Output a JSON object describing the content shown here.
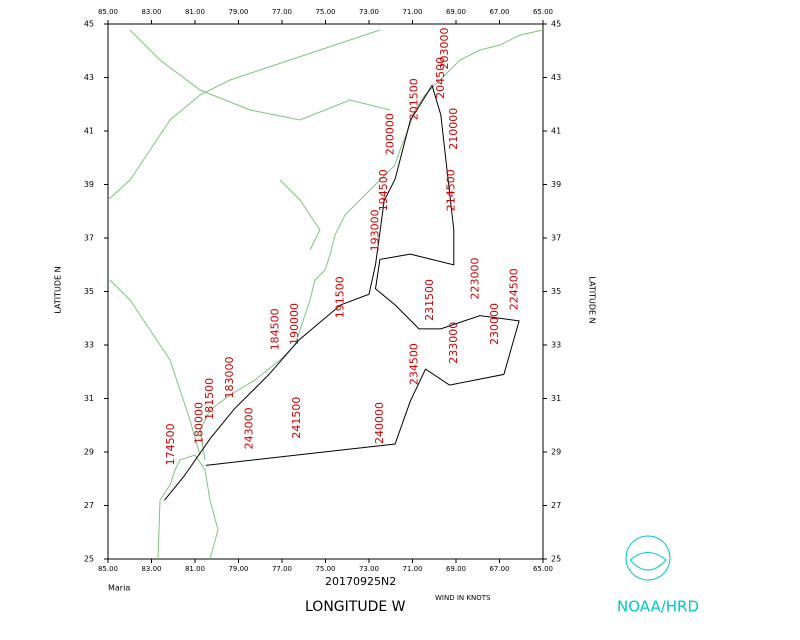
{
  "chart_data": {
    "type": "track",
    "storm": "Maria",
    "flight": "20170925N2",
    "xlabel": "LONGITUDE  W",
    "ylabel": "LATITUDE  N",
    "note": "WIND IN KNOTS",
    "credit": "NOAA/HRD",
    "xlim": [
      85,
      65
    ],
    "ylim": [
      25,
      45
    ],
    "xticks": [
      {
        "value": 85,
        "label": "85.00"
      },
      {
        "value": 83,
        "label": "83.00"
      },
      {
        "value": 81,
        "label": "81.00"
      },
      {
        "value": 79,
        "label": "79.00"
      },
      {
        "value": 77,
        "label": "77.00"
      },
      {
        "value": 75,
        "label": "75.00"
      },
      {
        "value": 73,
        "label": "73.00"
      },
      {
        "value": 71,
        "label": "71.00"
      },
      {
        "value": 69,
        "label": "69.00"
      },
      {
        "value": 67,
        "label": "67.00"
      },
      {
        "value": 65,
        "label": "65.00"
      }
    ],
    "yticks": [
      25,
      27,
      29,
      31,
      33,
      35,
      37,
      39,
      41,
      43,
      45
    ],
    "track_color": "#000000",
    "label_color": "#cc0000",
    "track": {
      "lon": [
        82.4,
        81.5,
        80.3,
        79.2,
        77.6,
        76.2,
        74.3,
        73.0,
        72.7,
        72.3,
        71.8,
        71.1,
        70.1,
        69.7,
        69.1,
        69.1,
        71.1,
        72.5,
        72.7,
        71.8,
        70.7,
        69.7,
        67.9,
        66.1,
        66.8,
        69.3,
        70.4,
        71.1,
        71.8,
        76.2,
        80.5
      ],
      "lat": [
        27.2,
        28.1,
        29.5,
        30.6,
        31.9,
        33.2,
        34.5,
        34.9,
        36.0,
        38.4,
        39.2,
        41.4,
        42.7,
        41.6,
        37.3,
        36.0,
        36.4,
        36.2,
        35.1,
        34.5,
        33.6,
        33.6,
        34.1,
        33.9,
        31.9,
        31.5,
        32.1,
        30.9,
        29.3,
        28.9,
        28.5
      ]
    },
    "time_labels": [
      {
        "text": "243000",
        "lon": 78.5,
        "lat": 29.1
      },
      {
        "text": "241500",
        "lon": 76.3,
        "lat": 29.5
      },
      {
        "text": "240000",
        "lon": 72.5,
        "lat": 29.3
      },
      {
        "text": "234500",
        "lon": 70.9,
        "lat": 31.5
      },
      {
        "text": "233000",
        "lon": 69.1,
        "lat": 32.3
      },
      {
        "text": "231500",
        "lon": 70.2,
        "lat": 33.9
      },
      {
        "text": "230000",
        "lon": 67.2,
        "lat": 33.0
      },
      {
        "text": "224500",
        "lon": 66.3,
        "lat": 34.3
      },
      {
        "text": "223000",
        "lon": 68.1,
        "lat": 34.7
      },
      {
        "text": "214500",
        "lon": 69.2,
        "lat": 38.0
      },
      {
        "text": "210000",
        "lon": 69.1,
        "lat": 40.3
      },
      {
        "text": "204500",
        "lon": 69.7,
        "lat": 42.2
      },
      {
        "text": "203000",
        "lon": 69.5,
        "lat": 43.3
      },
      {
        "text": "201500",
        "lon": 70.9,
        "lat": 41.4
      },
      {
        "text": "200000",
        "lon": 72.0,
        "lat": 40.1
      },
      {
        "text": "194500",
        "lon": 72.3,
        "lat": 38.0
      },
      {
        "text": "193000",
        "lon": 72.7,
        "lat": 36.5
      },
      {
        "text": "191500",
        "lon": 74.3,
        "lat": 34.0
      },
      {
        "text": "190000",
        "lon": 76.4,
        "lat": 33.0
      },
      {
        "text": "184500",
        "lon": 77.3,
        "lat": 32.8
      },
      {
        "text": "183000",
        "lon": 79.4,
        "lat": 31.0
      },
      {
        "text": "181500",
        "lon": 80.3,
        "lat": 30.2
      },
      {
        "text": "180000",
        "lon": 80.8,
        "lat": 29.3
      },
      {
        "text": "174500",
        "lon": 82.1,
        "lat": 28.5
      }
    ]
  }
}
